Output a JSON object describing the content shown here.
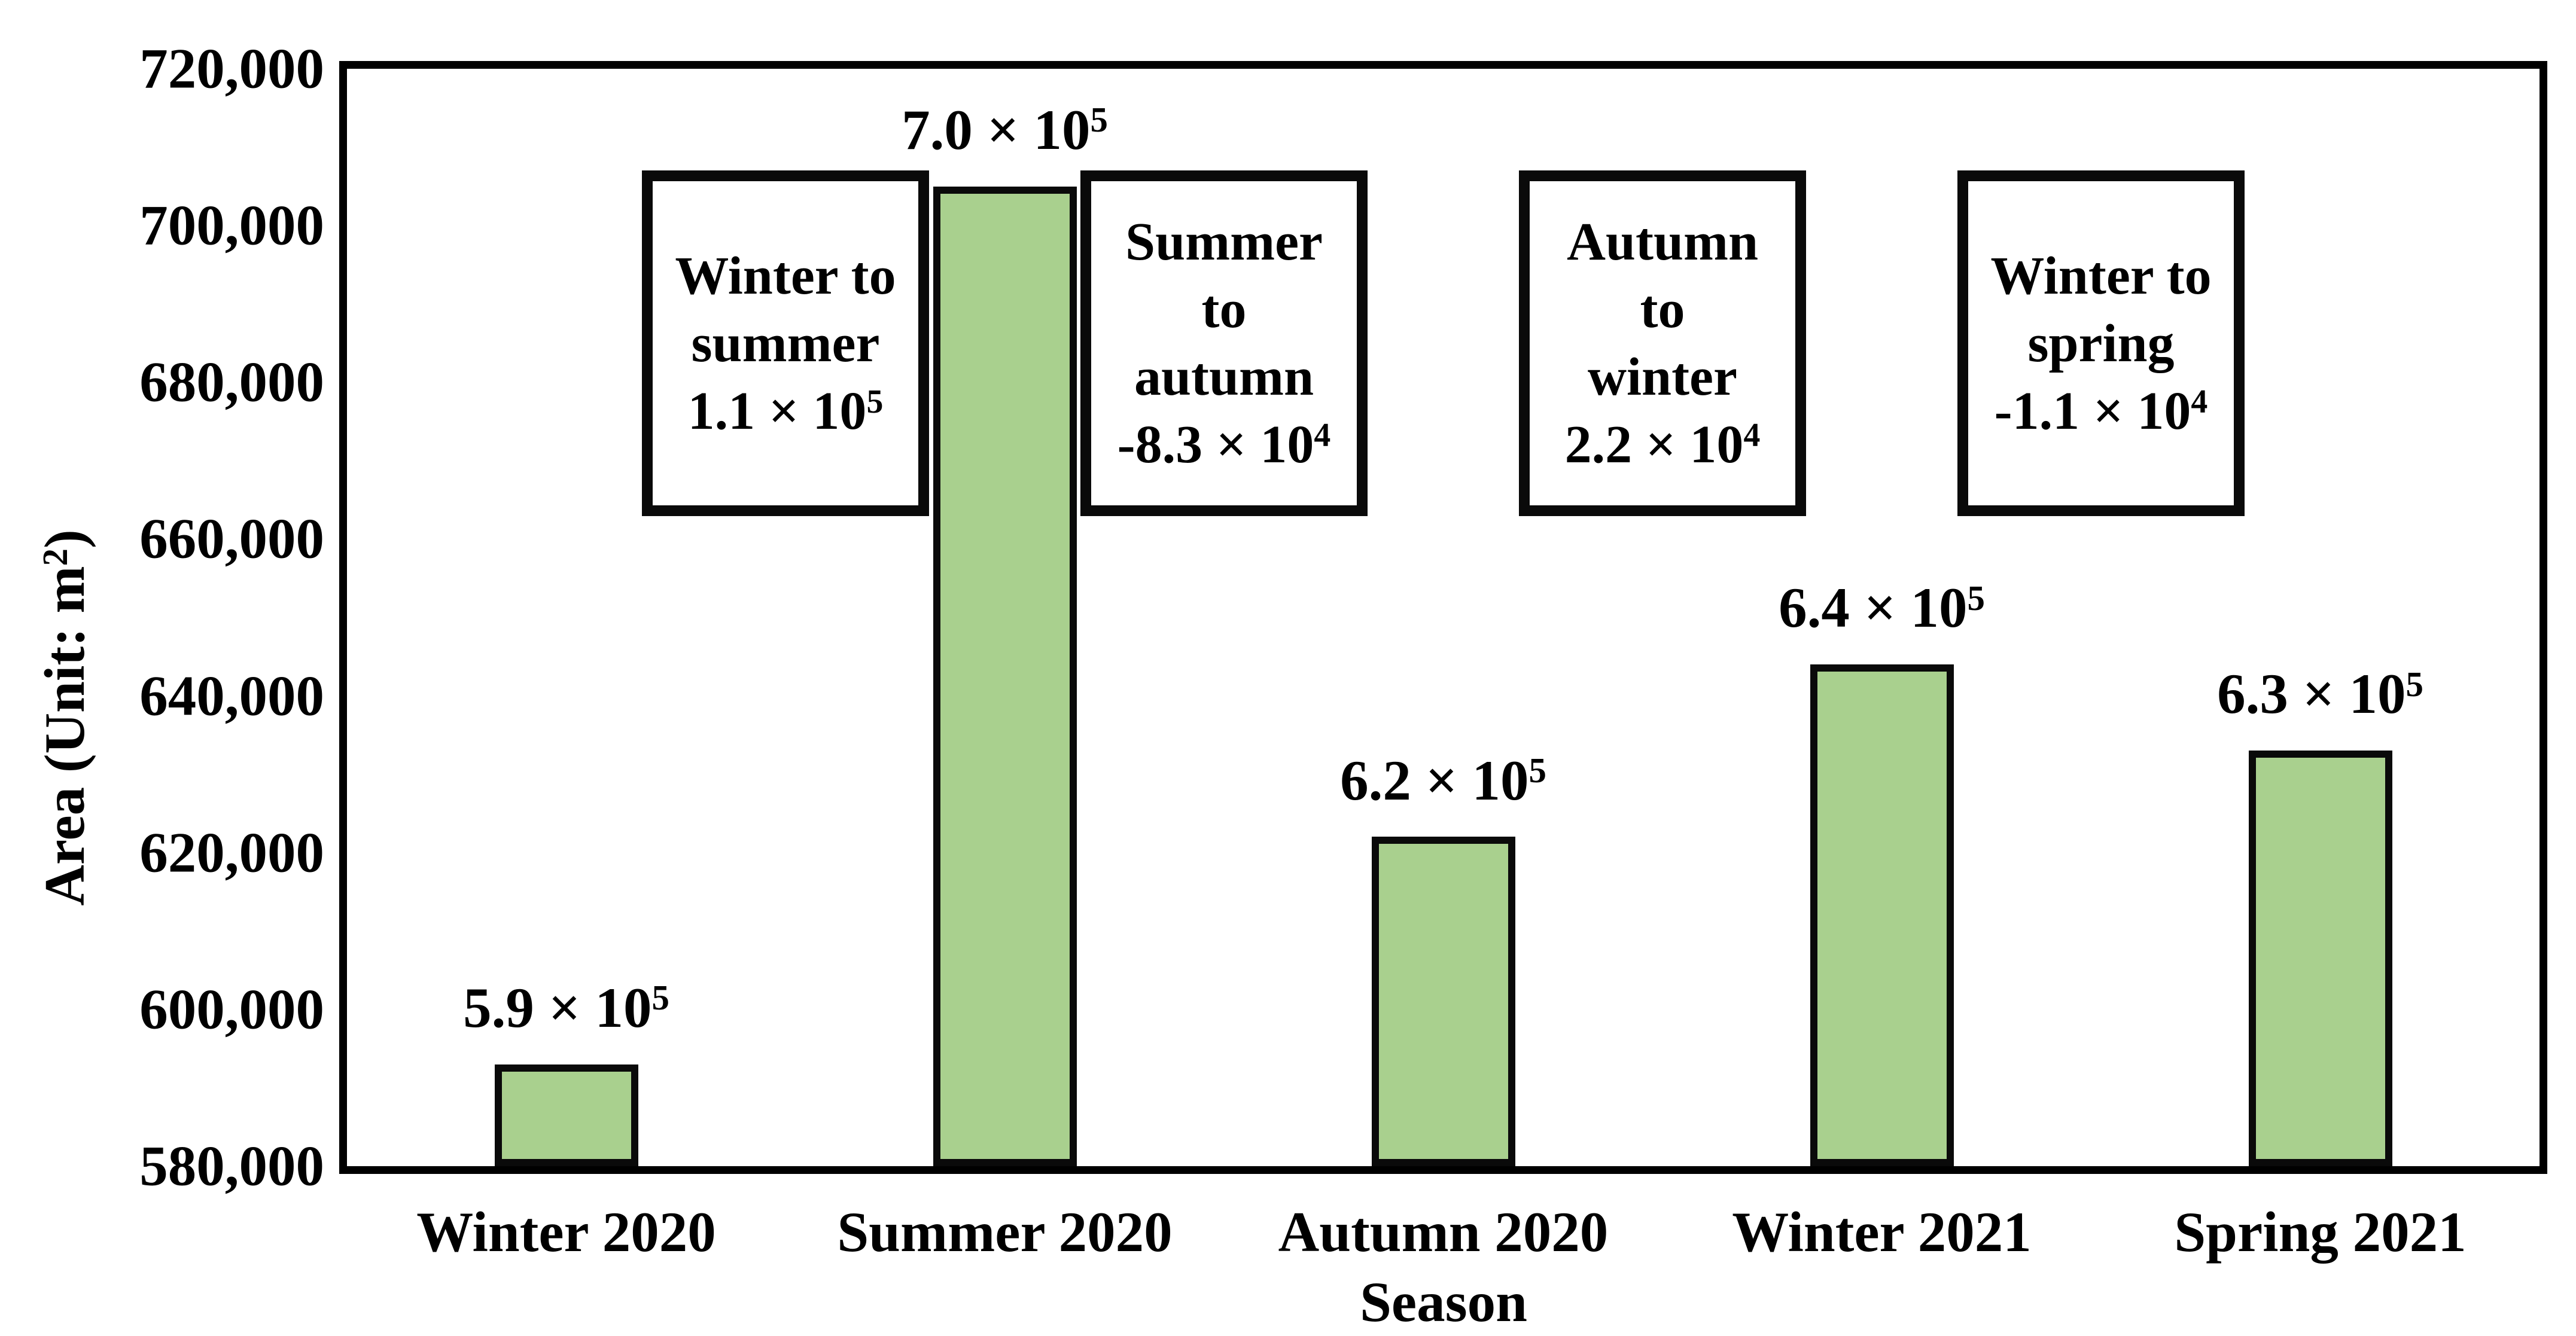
{
  "chart_data": {
    "type": "bar",
    "title": "",
    "xlabel": "Season",
    "ylabel": {
      "pre": "Area (Unit: m",
      "sup": "2",
      "post": ")"
    },
    "ylim": [
      580000,
      720000
    ],
    "ytick_step": 20000,
    "yticks": [
      {
        "value": 720000,
        "label": "720,000"
      },
      {
        "value": 700000,
        "label": "700,000"
      },
      {
        "value": 680000,
        "label": "680,000"
      },
      {
        "value": 660000,
        "label": "660,000"
      },
      {
        "value": 640000,
        "label": "640,000"
      },
      {
        "value": 620000,
        "label": "620,000"
      },
      {
        "value": 600000,
        "label": "600,000"
      },
      {
        "value": 580000,
        "label": "580,000"
      }
    ],
    "categories": [
      "Winter 2020",
      "Summer 2020",
      "Autumn 2020",
      "Winter 2021",
      "Spring 2021"
    ],
    "values": [
      593000,
      705000,
      622000,
      644000,
      633000
    ],
    "bar_labels": [
      {
        "mantissa": "5.9 × 10",
        "exp": "5"
      },
      {
        "mantissa": "7.0 × 10",
        "exp": "5"
      },
      {
        "mantissa": "6.2 × 10",
        "exp": "5"
      },
      {
        "mantissa": "6.4 × 10",
        "exp": "5"
      },
      {
        "mantissa": "6.3 × 10",
        "exp": "5"
      }
    ],
    "annotations": [
      {
        "lines": [
          "Winter to",
          "summer"
        ],
        "delta_mantissa": "1.1 × 10",
        "delta_exp": "5",
        "between": [
          0,
          1
        ]
      },
      {
        "lines": [
          "Summer",
          "to",
          "autumn"
        ],
        "delta_mantissa": "-8.3 × 10",
        "delta_exp": "4",
        "between": [
          1,
          2
        ]
      },
      {
        "lines": [
          "Autumn",
          "to",
          "winter"
        ],
        "delta_mantissa": "2.2 × 10",
        "delta_exp": "4",
        "between": [
          2,
          3
        ]
      },
      {
        "lines": [
          "Winter to",
          "spring"
        ],
        "delta_mantissa": "-1.1 × 10",
        "delta_exp": "4",
        "between": [
          3,
          4
        ]
      }
    ],
    "grid": false,
    "legend": null,
    "colors": {
      "bar_fill": "#a9d08e",
      "bar_stroke": "#0a0a0a",
      "axis": "#000000",
      "text": "#000000",
      "background": "#ffffff"
    }
  }
}
